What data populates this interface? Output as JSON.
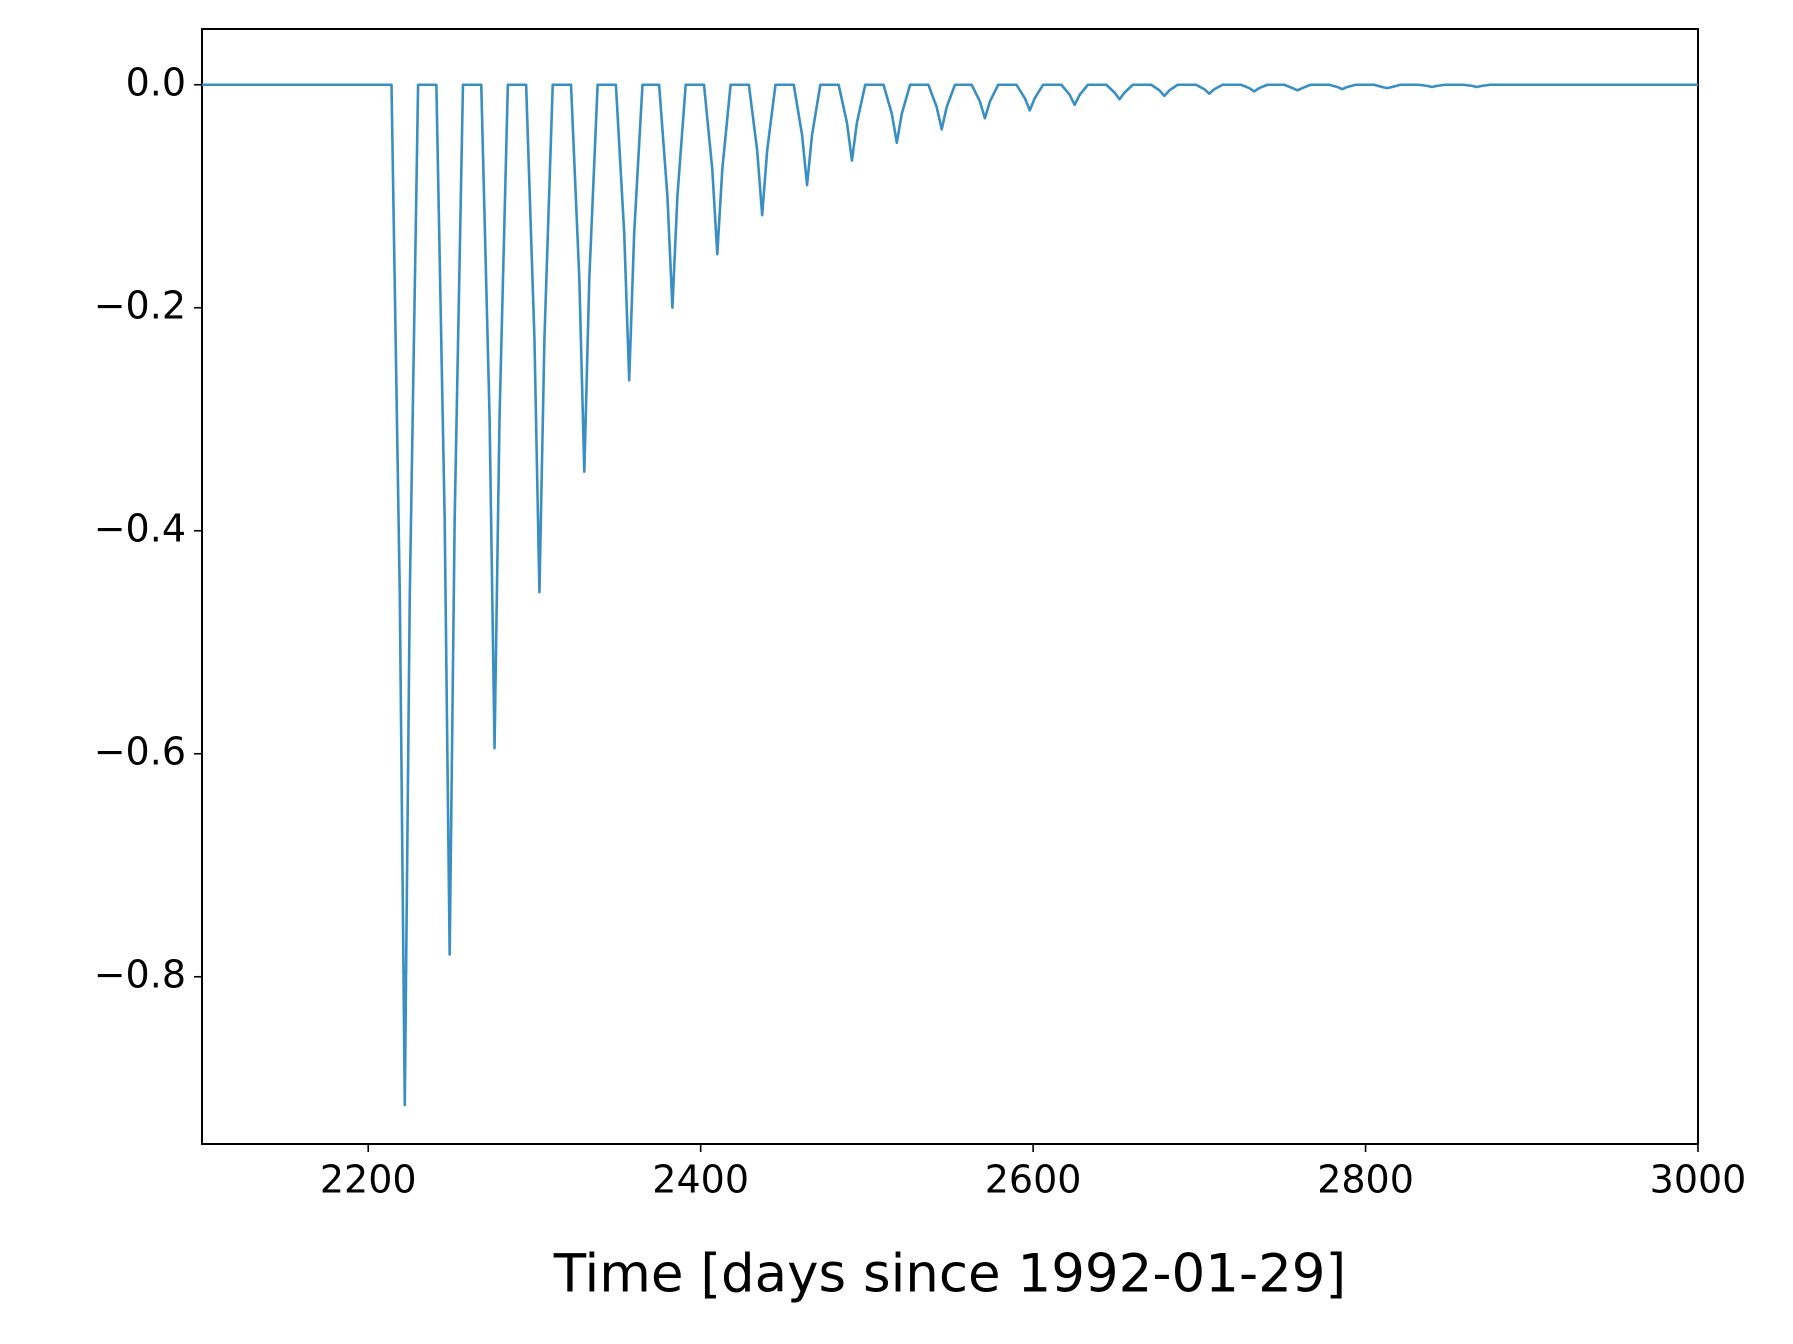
{
  "chart_data": {
    "type": "line",
    "xlabel": "Time [days since 1992-01-29]",
    "xlim": [
      2100,
      3000
    ],
    "xticks": [
      2200,
      2400,
      2600,
      2800,
      3000
    ],
    "ylim": [
      -0.95,
      0.05
    ],
    "yticks": [
      {
        "value": 0,
        "label": "0.0"
      },
      {
        "value": -0.2,
        "label": "−0.2"
      },
      {
        "value": -0.4,
        "label": "−0.4"
      },
      {
        "value": -0.6,
        "label": "−0.6"
      },
      {
        "value": -0.8,
        "label": "−0.8"
      }
    ],
    "grid": false,
    "series": [
      {
        "color": "#3a8fc2",
        "x": [
          2100,
          2214,
          2219,
          2222,
          2225,
          2230,
          2241,
          2246,
          2249,
          2252,
          2257,
          2268,
          2273,
          2276,
          2279,
          2284,
          2295,
          2300,
          2303,
          2306,
          2311,
          2322,
          2327,
          2330,
          2333,
          2338,
          2349,
          2354,
          2357,
          2360,
          2365,
          2375,
          2380,
          2383,
          2386,
          2391,
          2402,
          2407,
          2410,
          2413,
          2418,
          2429,
          2434,
          2437,
          2440,
          2445,
          2456,
          2461,
          2464,
          2467,
          2472,
          2483,
          2488,
          2491,
          2494,
          2499,
          2510,
          2515,
          2518,
          2521,
          2526,
          2537,
          2542,
          2545,
          2548,
          2553,
          2563,
          2568,
          2571,
          2574,
          2579,
          2590,
          2595,
          2598,
          2601,
          2606,
          2617,
          2622,
          2625,
          2628,
          2633,
          2644,
          2649,
          2652,
          2655,
          2660,
          2671,
          2676,
          2679,
          2682,
          2687,
          2698,
          2703,
          2706,
          2709,
          2714,
          2725,
          2730,
          2733,
          2736,
          2741,
          2751,
          2756,
          2759,
          2762,
          2767,
          2778,
          2783,
          2786,
          2789,
          2794,
          2805,
          2810,
          2813,
          2816,
          2821,
          2832,
          2837,
          2840,
          2843,
          2848,
          2859,
          2864,
          2867,
          2870,
          2875,
          3000
        ],
        "values": [
          0,
          0,
          -0.458,
          -0.915,
          -0.458,
          0,
          0,
          -0.39,
          -0.78,
          -0.39,
          0,
          0,
          -0.298,
          -0.595,
          -0.298,
          0,
          0,
          -0.228,
          -0.455,
          -0.228,
          0,
          0,
          -0.174,
          -0.347,
          -0.174,
          0,
          0,
          -0.133,
          -0.265,
          -0.133,
          0,
          0,
          -0.1,
          -0.2,
          -0.1,
          0,
          0,
          -0.076,
          -0.152,
          -0.076,
          0,
          0,
          -0.059,
          -0.117,
          -0.059,
          0,
          0,
          -0.045,
          -0.09,
          -0.045,
          0,
          0,
          -0.034,
          -0.068,
          -0.034,
          0,
          0,
          -0.026,
          -0.052,
          -0.026,
          0,
          0,
          -0.02,
          -0.04,
          -0.02,
          0,
          0,
          -0.015,
          -0.03,
          -0.015,
          0,
          0,
          -0.012,
          -0.023,
          -0.012,
          0,
          0,
          -0.009,
          -0.018,
          -0.009,
          0,
          0,
          -0.007,
          -0.013,
          -0.007,
          0,
          0,
          -0.005,
          -0.01,
          -0.005,
          0,
          0,
          -0.004,
          -0.008,
          -0.004,
          0,
          0,
          -0.003,
          -0.006,
          -0.003,
          0,
          0,
          -0.003,
          -0.005,
          -0.003,
          0,
          0,
          -0.002,
          -0.004,
          -0.002,
          0,
          0,
          -0.002,
          -0.003,
          -0.002,
          0,
          0,
          -0.001,
          -0.002,
          -0.001,
          0,
          0,
          -0.001,
          -0.002,
          -0.001,
          0,
          0
        ]
      }
    ]
  }
}
